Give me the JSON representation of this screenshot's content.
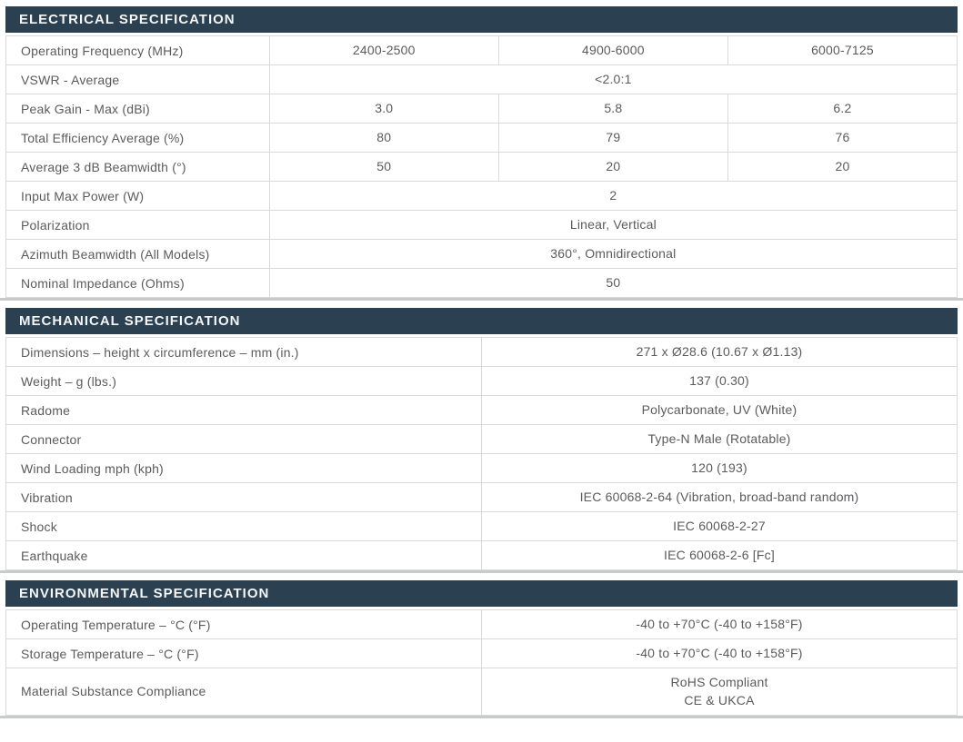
{
  "theme": {
    "header_bg": "#2b4050",
    "header_text": "#f3f5f6",
    "body_text": "#5a5b5e",
    "cell_border": "#d8d9da",
    "bottom_rule": "#c9cacb"
  },
  "sections": [
    {
      "title": "ELECTRICAL SPECIFICATION",
      "rows": [
        {
          "label": "Operating Frequency (MHz)",
          "values": [
            "2400-2500",
            "4900-6000",
            "6000-7125"
          ]
        },
        {
          "label": "VSWR - Average",
          "values": [
            "<2.0:1"
          ],
          "colspan": 3
        },
        {
          "label": "Peak Gain - Max (dBi)",
          "values": [
            "3.0",
            "5.8",
            "6.2"
          ]
        },
        {
          "label": "Total Efficiency Average (%)",
          "values": [
            "80",
            "79",
            "76"
          ]
        },
        {
          "label": "Average 3 dB Beamwidth (°)",
          "values": [
            "50",
            "20",
            "20"
          ]
        },
        {
          "label": "Input Max Power (W)",
          "values": [
            "2"
          ],
          "colspan": 3
        },
        {
          "label": "Polarization",
          "values": [
            "Linear, Vertical"
          ],
          "colspan": 3
        },
        {
          "label": "Azimuth Beamwidth (All Models)",
          "values": [
            "360°, Omnidirectional"
          ],
          "colspan": 3
        },
        {
          "label": "Nominal Impedance (Ohms)",
          "values": [
            "50"
          ],
          "colspan": 3
        }
      ]
    },
    {
      "title": "MECHANICAL SPECIFICATION",
      "rows": [
        {
          "label": "Dimensions – height x circumference – mm (in.)",
          "values": [
            "271 x Ø28.6 (10.67 x Ø1.13)"
          ]
        },
        {
          "label": "Weight – g (lbs.)",
          "values": [
            "137 (0.30)"
          ]
        },
        {
          "label": "Radome",
          "values": [
            "Polycarbonate, UV (White)"
          ]
        },
        {
          "label": "Connector",
          "values": [
            "Type-N Male (Rotatable)"
          ]
        },
        {
          "label": "Wind Loading mph (kph)",
          "values": [
            "120 (193)"
          ]
        },
        {
          "label": "Vibration",
          "values": [
            "IEC 60068-2-64 (Vibration, broad-band random)"
          ]
        },
        {
          "label": "Shock",
          "values": [
            "IEC 60068-2-27"
          ]
        },
        {
          "label": "Earthquake",
          "values": [
            "IEC 60068-2-6 [Fc]"
          ]
        }
      ]
    },
    {
      "title": "ENVIRONMENTAL SPECIFICATION",
      "rows": [
        {
          "label": "Operating Temperature – °C (°F)",
          "values": [
            "-40 to +70°C (-40 to +158°F)"
          ]
        },
        {
          "label": "Storage Temperature – °C (°F)",
          "values": [
            "-40 to +70°C (-40 to +158°F)"
          ]
        },
        {
          "label": "Material Substance Compliance",
          "values": [
            "RoHS Compliant\nCE & UKCA"
          ]
        }
      ]
    }
  ]
}
